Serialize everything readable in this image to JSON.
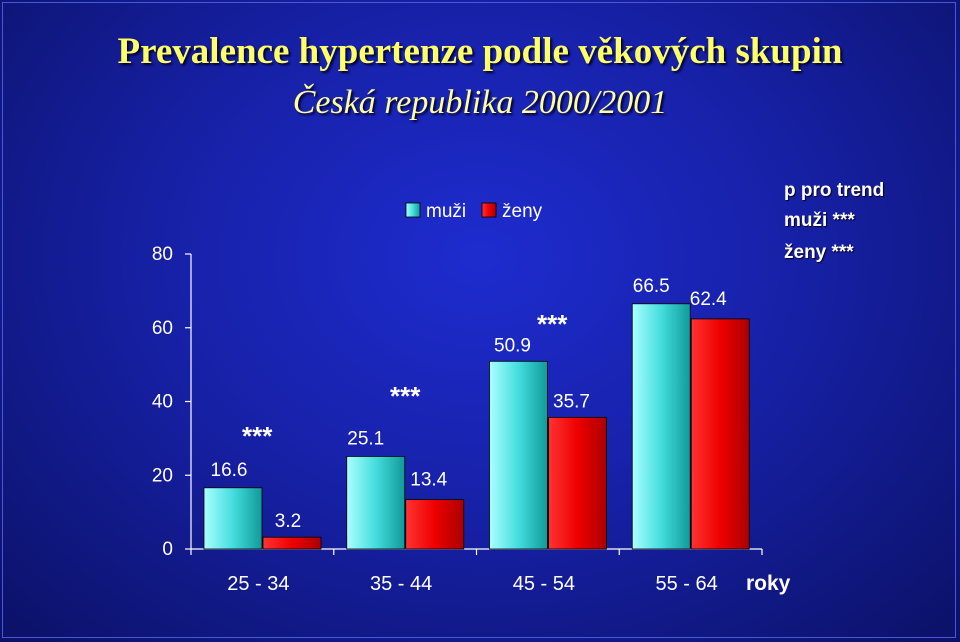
{
  "title": "Prevalence hypertenze podle věkových skupin",
  "subtitle": "Česká republika 2000/2001",
  "chart_data": {
    "type": "bar",
    "title": "Prevalence hypertenze podle věkových skupin",
    "subtitle": "Česká republika 2000/2001",
    "categories": [
      "25 - 34",
      "35 - 44",
      "45 - 54",
      "55 - 64"
    ],
    "series": [
      {
        "name": "muži",
        "values": [
          16.6,
          25.1,
          50.9,
          66.5
        ],
        "color": "#33cccc"
      },
      {
        "name": "ženy",
        "values": [
          3.2,
          13.4,
          35.7,
          62.4
        ],
        "color": "#ee0000"
      }
    ],
    "value_labels": {
      "muži": [
        "16.6",
        "25.1",
        "50.9",
        "66.5"
      ],
      "ženy": [
        "3.2",
        "13.4",
        "35.7",
        "62.4"
      ]
    },
    "yticks": [
      "0",
      "20",
      "40",
      "60",
      "80"
    ],
    "ylim": [
      0,
      80
    ],
    "xlabel": "roky",
    "ylabel": "",
    "legend": {
      "position": "top-center",
      "entries": [
        "muži",
        "ženy"
      ]
    },
    "significance": [
      "***",
      "***",
      "***"
    ],
    "trend_note": {
      "title": "p pro trend",
      "men": "muži ***",
      "women": "ženy ***"
    }
  }
}
